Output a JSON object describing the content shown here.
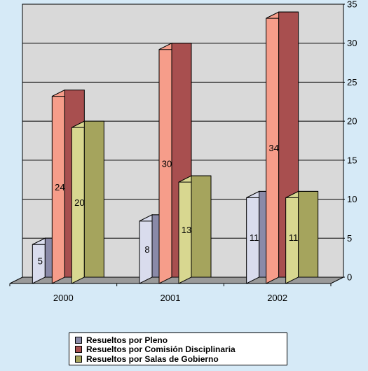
{
  "chart_data": {
    "type": "bar",
    "categories": [
      "2000",
      "2001",
      "2002"
    ],
    "series": [
      {
        "name": "Resueltos por Pleno",
        "values": [
          5,
          8,
          11
        ],
        "color": "#8a8aa8",
        "light": "#d9dced",
        "labelColor": "#000000"
      },
      {
        "name": "Resueltos por Comisión Disciplinaria",
        "values": [
          24,
          30,
          34
        ],
        "color": "#a84f4f",
        "light": "#f69d8a",
        "labelColor": "#000000"
      },
      {
        "name": "Resueltos por Salas de Gobierno",
        "values": [
          20,
          13,
          11
        ],
        "color": "#a5a45d",
        "light": "#d8d790",
        "labelColor": "#000000"
      }
    ],
    "yticks": [
      0,
      5,
      10,
      15,
      20,
      25,
      30,
      35
    ],
    "ylim": [
      0,
      35
    ],
    "title": "",
    "xlabel": "",
    "ylabel": "",
    "grid": true,
    "legend": "bottom"
  }
}
